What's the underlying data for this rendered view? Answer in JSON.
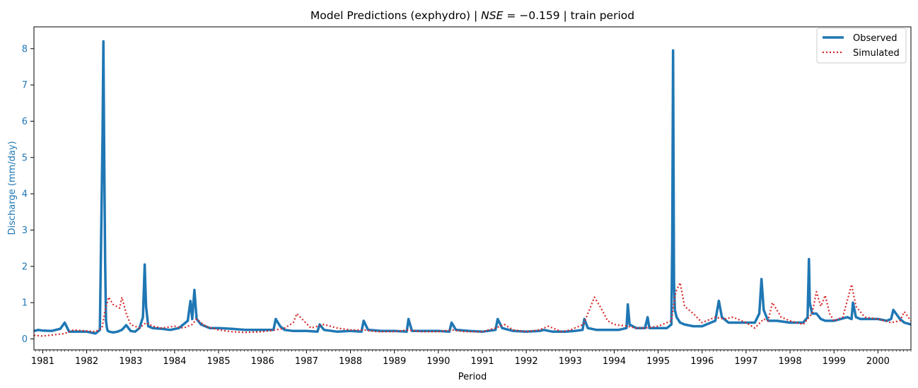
{
  "chart_data": {
    "type": "line",
    "title": "Model Predictions (exphydro) | NSE = −0.159 | train period",
    "title_parts": {
      "prefix": "Model Predictions (exphydro) | ",
      "nse_symbol": "NSE",
      "nse_value": " = −0.159",
      "suffix": " | train period"
    },
    "xlabel": "Period",
    "ylabel": "Discharge (mm/day)",
    "xlim": [
      1980.8,
      2000.75
    ],
    "ylim": [
      -0.3,
      8.6
    ],
    "x_ticks": [
      "1981",
      "1982",
      "1983",
      "1984",
      "1985",
      "1986",
      "1987",
      "1988",
      "1989",
      "1990",
      "1991",
      "1992",
      "1993",
      "1994",
      "1995",
      "1996",
      "1997",
      "1998",
      "1999",
      "2000"
    ],
    "y_ticks": [
      "0",
      "1",
      "2",
      "3",
      "4",
      "5",
      "6",
      "7",
      "8"
    ],
    "legend": {
      "position": "top-right",
      "entries": [
        "Observed",
        "Simulated"
      ]
    },
    "colors": {
      "observed": "#1f77b4",
      "simulated": "#d62728",
      "ylabel": "#1f77b4"
    },
    "series": [
      {
        "name": "Observed",
        "style": "solid",
        "x": [
          1980.8,
          1980.9,
          1981.0,
          1981.2,
          1981.4,
          1981.5,
          1981.6,
          1981.8,
          1982.0,
          1982.2,
          1982.3,
          1982.36,
          1982.38,
          1982.4,
          1982.42,
          1982.44,
          1982.46,
          1982.48,
          1982.52,
          1982.6,
          1982.7,
          1982.8,
          1982.9,
          1983.0,
          1983.1,
          1983.2,
          1983.28,
          1983.32,
          1983.35,
          1983.4,
          1983.5,
          1983.7,
          1983.9,
          1984.1,
          1984.3,
          1984.36,
          1984.4,
          1984.45,
          1984.5,
          1984.6,
          1984.8,
          1985.0,
          1985.3,
          1985.6,
          1986.0,
          1986.25,
          1986.3,
          1986.4,
          1986.5,
          1986.7,
          1987.0,
          1987.25,
          1987.3,
          1987.4,
          1987.7,
          1988.0,
          1988.25,
          1988.3,
          1988.4,
          1988.7,
          1989.0,
          1989.28,
          1989.32,
          1989.4,
          1989.7,
          1990.0,
          1990.25,
          1990.3,
          1990.4,
          1990.7,
          1991.0,
          1991.3,
          1991.35,
          1991.45,
          1991.7,
          1992.0,
          1992.3,
          1992.4,
          1992.6,
          1992.9,
          1993.1,
          1993.28,
          1993.32,
          1993.4,
          1993.6,
          1993.9,
          1994.1,
          1994.28,
          1994.31,
          1994.35,
          1994.5,
          1994.7,
          1994.76,
          1994.8,
          1994.9,
          1995.0,
          1995.2,
          1995.3,
          1995.32,
          1995.34,
          1995.36,
          1995.38,
          1995.42,
          1995.5,
          1995.6,
          1995.8,
          1996.0,
          1996.3,
          1996.38,
          1996.45,
          1996.6,
          1996.8,
          1997.0,
          1997.2,
          1997.3,
          1997.35,
          1997.4,
          1997.5,
          1997.7,
          1998.0,
          1998.3,
          1998.4,
          1998.43,
          1998.45,
          1998.5,
          1998.6,
          1998.7,
          1998.8,
          1998.9,
          1999.0,
          1999.3,
          1999.4,
          1999.43,
          1999.5,
          1999.6,
          1999.8,
          2000.0,
          2000.2,
          2000.3,
          2000.35,
          2000.5,
          2000.6,
          2000.75
        ],
        "y": [
          0.22,
          0.25,
          0.23,
          0.22,
          0.28,
          0.45,
          0.2,
          0.2,
          0.2,
          0.15,
          0.25,
          5.6,
          8.2,
          4.9,
          2.1,
          0.5,
          0.3,
          0.22,
          0.2,
          0.18,
          0.2,
          0.25,
          0.38,
          0.22,
          0.2,
          0.3,
          0.6,
          2.05,
          0.9,
          0.35,
          0.3,
          0.28,
          0.25,
          0.3,
          0.5,
          1.05,
          0.55,
          1.35,
          0.55,
          0.4,
          0.3,
          0.3,
          0.28,
          0.25,
          0.25,
          0.25,
          0.55,
          0.35,
          0.25,
          0.22,
          0.22,
          0.2,
          0.4,
          0.25,
          0.2,
          0.22,
          0.2,
          0.5,
          0.25,
          0.22,
          0.22,
          0.2,
          0.55,
          0.22,
          0.22,
          0.22,
          0.2,
          0.45,
          0.25,
          0.22,
          0.2,
          0.25,
          0.55,
          0.3,
          0.22,
          0.2,
          0.22,
          0.25,
          0.2,
          0.2,
          0.22,
          0.25,
          0.55,
          0.3,
          0.25,
          0.25,
          0.25,
          0.3,
          0.95,
          0.4,
          0.3,
          0.3,
          0.6,
          0.3,
          0.3,
          0.3,
          0.3,
          0.4,
          2.7,
          7.95,
          1.6,
          0.8,
          0.6,
          0.45,
          0.4,
          0.35,
          0.35,
          0.5,
          1.05,
          0.6,
          0.45,
          0.45,
          0.45,
          0.45,
          0.7,
          1.65,
          0.8,
          0.5,
          0.5,
          0.45,
          0.45,
          0.6,
          2.2,
          1.0,
          0.7,
          0.7,
          0.55,
          0.5,
          0.5,
          0.5,
          0.6,
          0.55,
          1.0,
          0.6,
          0.55,
          0.55,
          0.55,
          0.5,
          0.55,
          0.8,
          0.55,
          0.45,
          0.4
        ]
      },
      {
        "name": "Simulated",
        "style": "dotted",
        "x": [
          1980.8,
          1981.0,
          1981.3,
          1981.5,
          1981.7,
          1982.0,
          1982.2,
          1982.35,
          1982.42,
          1982.5,
          1982.6,
          1982.75,
          1982.8,
          1982.9,
          1983.0,
          1983.2,
          1983.35,
          1983.5,
          1983.7,
          1984.0,
          1984.2,
          1984.4,
          1984.5,
          1984.7,
          1985.0,
          1985.3,
          1985.6,
          1986.0,
          1986.3,
          1986.5,
          1986.7,
          1986.78,
          1986.9,
          1987.1,
          1987.4,
          1987.7,
          1988.0,
          1988.3,
          1988.6,
          1989.0,
          1989.3,
          1989.6,
          1990.0,
          1990.3,
          1990.6,
          1991.0,
          1991.3,
          1991.5,
          1991.7,
          1992.0,
          1992.3,
          1992.5,
          1992.8,
          1993.0,
          1993.3,
          1993.5,
          1993.55,
          1993.7,
          1993.85,
          1994.0,
          1994.3,
          1994.5,
          1994.7,
          1995.0,
          1995.3,
          1995.4,
          1995.5,
          1995.6,
          1995.8,
          1996.0,
          1996.3,
          1996.5,
          1996.7,
          1997.0,
          1997.2,
          1997.4,
          1997.5,
          1997.6,
          1997.8,
          1998.0,
          1998.3,
          1998.5,
          1998.6,
          1998.7,
          1998.8,
          1998.9,
          1999.0,
          1999.2,
          1999.4,
          1999.5,
          1999.7,
          2000.0,
          2000.3,
          2000.5,
          2000.6,
          2000.75
        ],
        "y": [
          0.1,
          0.08,
          0.12,
          0.15,
          0.25,
          0.22,
          0.2,
          0.3,
          0.8,
          1.15,
          0.95,
          0.85,
          1.15,
          0.7,
          0.4,
          0.3,
          0.45,
          0.35,
          0.3,
          0.35,
          0.3,
          0.4,
          0.55,
          0.35,
          0.25,
          0.2,
          0.18,
          0.2,
          0.25,
          0.3,
          0.45,
          0.7,
          0.55,
          0.3,
          0.4,
          0.3,
          0.25,
          0.25,
          0.2,
          0.2,
          0.25,
          0.2,
          0.2,
          0.25,
          0.2,
          0.2,
          0.3,
          0.4,
          0.25,
          0.2,
          0.25,
          0.35,
          0.2,
          0.25,
          0.4,
          1.0,
          1.15,
          0.85,
          0.5,
          0.4,
          0.35,
          0.3,
          0.3,
          0.35,
          0.5,
          1.3,
          1.55,
          0.9,
          0.7,
          0.45,
          0.6,
          0.55,
          0.6,
          0.45,
          0.3,
          0.55,
          0.5,
          1.0,
          0.6,
          0.5,
          0.4,
          0.7,
          1.3,
          0.9,
          1.2,
          0.7,
          0.5,
          0.6,
          1.5,
          0.9,
          0.6,
          0.55,
          0.45,
          0.5,
          0.75,
          0.5
        ]
      }
    ]
  }
}
